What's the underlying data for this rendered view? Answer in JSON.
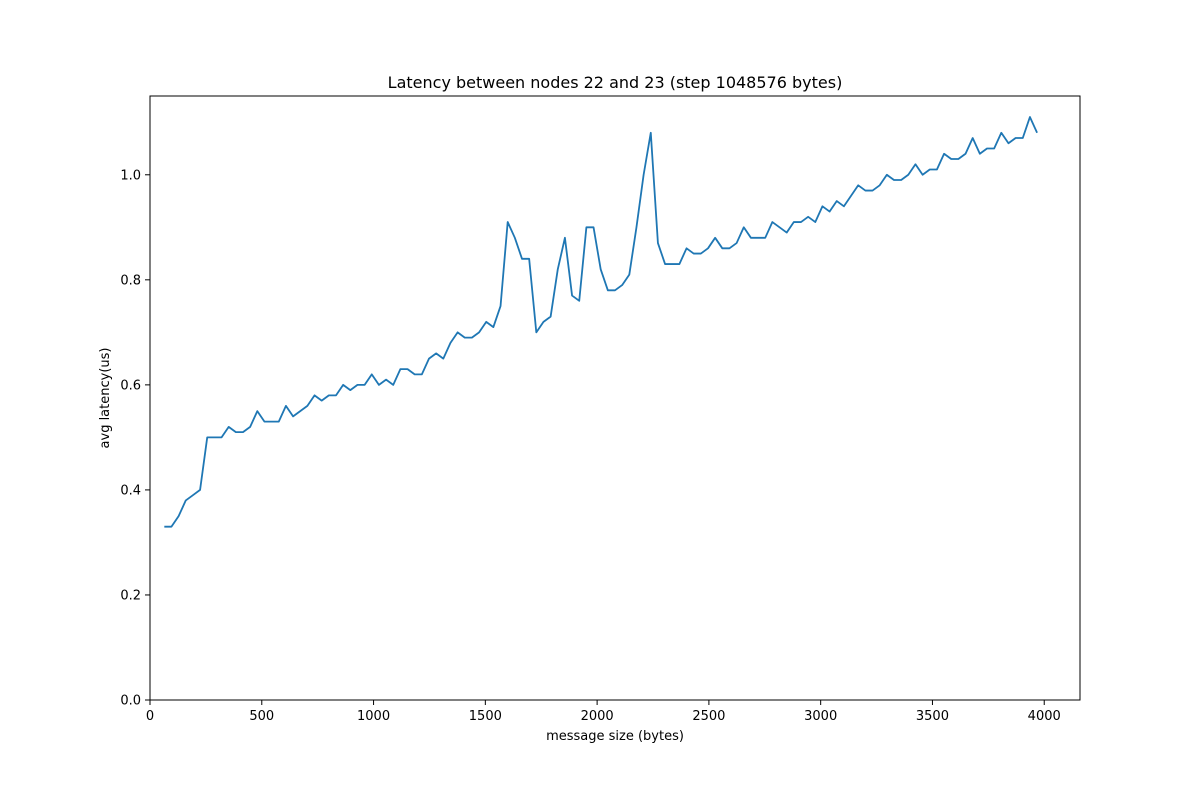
{
  "chart_data": {
    "type": "line",
    "title": "Latency between nodes 22 and 23 (step 1048576 bytes)",
    "xlabel": "message size (bytes)",
    "ylabel": "avg latency(us)",
    "xlim": [
      0,
      4160
    ],
    "ylim": [
      0,
      1.15
    ],
    "xticks": [
      0,
      500,
      1000,
      1500,
      2000,
      2500,
      3000,
      3500,
      4000
    ],
    "yticks": [
      0.0,
      0.2,
      0.4,
      0.6,
      0.8,
      1.0
    ],
    "ytick_labels": [
      "0.0",
      "0.2",
      "0.4",
      "0.6",
      "0.8",
      "1.0"
    ],
    "grid": false,
    "series": [
      {
        "color": "#1f77b4",
        "x": [
          64,
          96,
          128,
          160,
          192,
          224,
          256,
          288,
          320,
          352,
          384,
          416,
          448,
          480,
          512,
          544,
          576,
          608,
          640,
          672,
          704,
          736,
          768,
          800,
          832,
          864,
          896,
          928,
          960,
          992,
          1024,
          1056,
          1088,
          1120,
          1152,
          1184,
          1216,
          1248,
          1280,
          1312,
          1344,
          1376,
          1408,
          1440,
          1472,
          1504,
          1536,
          1568,
          1600,
          1632,
          1664,
          1696,
          1728,
          1760,
          1792,
          1824,
          1856,
          1888,
          1920,
          1952,
          1984,
          2016,
          2048,
          2080,
          2112,
          2144,
          2176,
          2208,
          2240,
          2272,
          2304,
          2336,
          2368,
          2400,
          2432,
          2464,
          2496,
          2528,
          2560,
          2592,
          2624,
          2656,
          2688,
          2720,
          2752,
          2784,
          2816,
          2848,
          2880,
          2912,
          2944,
          2976,
          3008,
          3040,
          3072,
          3104,
          3136,
          3168,
          3200,
          3232,
          3264,
          3296,
          3328,
          3360,
          3392,
          3424,
          3456,
          3488,
          3520,
          3552,
          3584,
          3616,
          3648,
          3680,
          3712,
          3744,
          3776,
          3808,
          3840,
          3872,
          3904,
          3936,
          3968
        ],
        "y": [
          0.33,
          0.33,
          0.35,
          0.38,
          0.39,
          0.4,
          0.5,
          0.5,
          0.5,
          0.52,
          0.51,
          0.51,
          0.52,
          0.55,
          0.53,
          0.53,
          0.53,
          0.56,
          0.54,
          0.55,
          0.56,
          0.58,
          0.57,
          0.58,
          0.58,
          0.6,
          0.59,
          0.6,
          0.6,
          0.62,
          0.6,
          0.61,
          0.6,
          0.63,
          0.63,
          0.62,
          0.62,
          0.65,
          0.66,
          0.65,
          0.68,
          0.7,
          0.69,
          0.69,
          0.7,
          0.72,
          0.71,
          0.75,
          0.91,
          0.88,
          0.84,
          0.84,
          0.7,
          0.72,
          0.73,
          0.82,
          0.88,
          0.77,
          0.76,
          0.9,
          0.9,
          0.82,
          0.78,
          0.78,
          0.79,
          0.81,
          0.9,
          1.0,
          1.08,
          0.87,
          0.83,
          0.83,
          0.83,
          0.86,
          0.85,
          0.85,
          0.86,
          0.88,
          0.86,
          0.86,
          0.87,
          0.9,
          0.88,
          0.88,
          0.88,
          0.91,
          0.9,
          0.89,
          0.91,
          0.91,
          0.92,
          0.91,
          0.94,
          0.93,
          0.95,
          0.94,
          0.96,
          0.98,
          0.97,
          0.97,
          0.98,
          1.0,
          0.99,
          0.99,
          1.0,
          1.02,
          1.0,
          1.01,
          1.01,
          1.04,
          1.03,
          1.03,
          1.04,
          1.07,
          1.04,
          1.05,
          1.05,
          1.08,
          1.06,
          1.07,
          1.07,
          1.11,
          1.08
        ]
      }
    ]
  }
}
